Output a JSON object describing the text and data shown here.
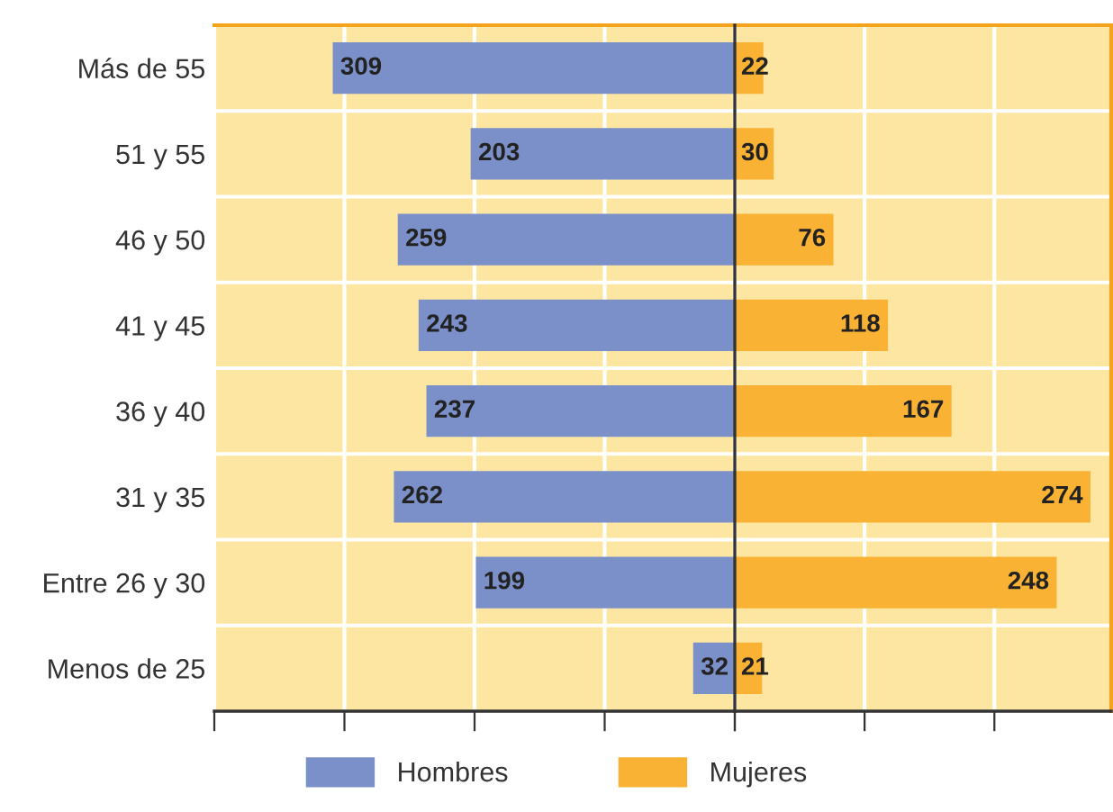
{
  "chart_data": [
    {
      "type": "bar",
      "orientation": "horizontal",
      "categories": [
        "Más de 55",
        "51 y 55",
        "46 y 50",
        "41 y 45",
        "36 y 40",
        "31 y 35",
        "Entre 26 y 30",
        "Menos de 25"
      ],
      "series": [
        {
          "name": "Hombres",
          "color": "#7b90c8",
          "values": [
            309,
            203,
            259,
            243,
            237,
            262,
            199,
            32
          ]
        }
      ],
      "data_labels": true,
      "xlim": [
        400,
        0
      ],
      "xticks": [
        {
          "value": 400,
          "label": null
        },
        {
          "value": 300,
          "label": null
        },
        {
          "value": 200,
          "label": null
        },
        {
          "value": 100,
          "label": null
        },
        {
          "value": 0,
          "label": null
        }
      ],
      "tick_labels": "y",
      "grid": true,
      "legend": "bottom"
    },
    {
      "type": "bar",
      "orientation": "horizontal",
      "categories": [
        null,
        null,
        null,
        null,
        null,
        null,
        null,
        null
      ],
      "series": [
        {
          "name": "Mujeres",
          "color": "#f9b233",
          "values": [
            22,
            30,
            76,
            118,
            167,
            274,
            248,
            21
          ]
        }
      ],
      "data_labels": true,
      "xlim": [
        0,
        290
      ],
      "xticks": [
        {
          "value": 0,
          "label": null
        },
        {
          "value": 100,
          "label": null
        },
        {
          "value": 200,
          "label": null
        }
      ],
      "tick_labels": false,
      "grid": true,
      "legend": "bottom"
    }
  ]
}
